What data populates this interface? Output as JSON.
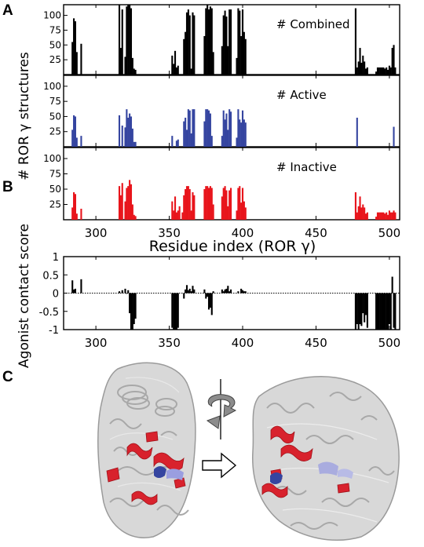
{
  "panel_labels": {
    "a": "A",
    "b": "B",
    "c": "C"
  },
  "chart_data": [
    {
      "panel": "A",
      "type": "bar",
      "ylabel": "# ROR γ structures",
      "xlabel": "Residue index (ROR γ)",
      "xlim": [
        278,
        507
      ],
      "xticks": [
        "300",
        "350",
        "400",
        "450",
        "500"
      ],
      "subplots": [
        {
          "annotation": "# Combined",
          "color": "#000000",
          "ylim": [
            0,
            118
          ],
          "yticks": [
            "25",
            "50",
            "75",
            "100"
          ],
          "x": [
            284,
            285,
            286,
            287,
            290,
            316,
            317,
            318,
            320,
            321,
            322,
            323,
            324,
            325,
            326,
            327,
            352,
            353,
            354,
            355,
            356,
            360,
            361,
            362,
            363,
            364,
            365,
            366,
            367,
            374,
            375,
            376,
            377,
            378,
            379,
            380,
            386,
            387,
            388,
            389,
            390,
            391,
            392,
            396,
            397,
            398,
            399,
            400,
            401,
            402,
            477,
            478,
            479,
            480,
            481,
            482,
            483,
            484,
            485,
            491,
            492,
            493,
            494,
            495,
            496,
            497,
            498,
            499,
            500,
            501,
            502,
            503,
            504
          ],
          "values": [
            55,
            95,
            90,
            38,
            52,
            118,
            45,
            110,
            30,
            115,
            118,
            120,
            112,
            28,
            10,
            8,
            32,
            18,
            40,
            12,
            15,
            60,
            72,
            105,
            110,
            100,
            10,
            105,
            100,
            65,
            112,
            118,
            110,
            115,
            112,
            38,
            48,
            100,
            108,
            98,
            48,
            110,
            110,
            28,
            112,
            108,
            65,
            110,
            72,
            60,
            112,
            12,
            22,
            45,
            20,
            32,
            22,
            10,
            12,
            5,
            12,
            12,
            12,
            12,
            12,
            10,
            12,
            8,
            15,
            12,
            45,
            50,
            12
          ]
        },
        {
          "annotation": "# Active",
          "color": "#3545a0",
          "ylim": [
            0,
            118
          ],
          "yticks": [
            "25",
            "50",
            "75",
            "100"
          ],
          "x": [
            284,
            285,
            286,
            287,
            290,
            316,
            318,
            320,
            321,
            322,
            323,
            324,
            325,
            326,
            327,
            352,
            355,
            356,
            360,
            361,
            362,
            363,
            364,
            365,
            366,
            367,
            374,
            375,
            376,
            377,
            378,
            379,
            386,
            387,
            388,
            389,
            390,
            391,
            392,
            396,
            397,
            398,
            399,
            400,
            401,
            402,
            478,
            503
          ],
          "values": [
            28,
            52,
            50,
            15,
            18,
            52,
            35,
            32,
            62,
            48,
            55,
            50,
            30,
            8,
            8,
            18,
            10,
            12,
            42,
            48,
            28,
            62,
            60,
            22,
            62,
            62,
            42,
            62,
            62,
            60,
            55,
            18,
            18,
            60,
            45,
            55,
            28,
            62,
            58,
            15,
            62,
            45,
            40,
            60,
            45,
            40,
            48,
            33
          ]
        },
        {
          "annotation": "# Inactive",
          "color": "#e8141b",
          "ylim": [
            0,
            118
          ],
          "yticks": [
            "25",
            "50",
            "75",
            "100"
          ],
          "x": [
            284,
            285,
            286,
            287,
            290,
            316,
            317,
            318,
            320,
            321,
            322,
            323,
            324,
            325,
            326,
            327,
            352,
            353,
            354,
            355,
            356,
            357,
            359,
            360,
            361,
            362,
            363,
            364,
            365,
            366,
            367,
            374,
            375,
            376,
            377,
            378,
            379,
            380,
            386,
            387,
            388,
            389,
            390,
            391,
            392,
            396,
            397,
            398,
            399,
            400,
            401,
            402,
            477,
            478,
            479,
            480,
            481,
            482,
            483,
            484,
            485,
            491,
            492,
            493,
            494,
            495,
            496,
            497,
            498,
            499,
            500,
            501,
            502,
            503,
            504
          ],
          "values": [
            20,
            45,
            42,
            10,
            18,
            55,
            40,
            60,
            30,
            52,
            55,
            65,
            58,
            25,
            8,
            6,
            30,
            15,
            38,
            12,
            15,
            22,
            12,
            40,
            50,
            55,
            55,
            50,
            15,
            45,
            40,
            50,
            55,
            55,
            52,
            55,
            52,
            25,
            38,
            52,
            55,
            48,
            22,
            48,
            52,
            15,
            52,
            55,
            28,
            52,
            30,
            20,
            45,
            12,
            22,
            38,
            20,
            25,
            20,
            10,
            12,
            5,
            12,
            12,
            12,
            12,
            12,
            10,
            12,
            8,
            15,
            12,
            12,
            15,
            12
          ]
        }
      ]
    },
    {
      "panel": "B",
      "type": "bar",
      "ylabel": "Agonist contact score",
      "xlim": [
        278,
        507
      ],
      "ylim": [
        -1,
        1
      ],
      "yticks": [
        "1",
        "0.5",
        "0",
        "-0.5",
        "-1"
      ],
      "xticks": [
        "300",
        "350",
        "400",
        "450",
        "500"
      ],
      "color": "#000000",
      "x": [
        284,
        285,
        286,
        290,
        316,
        318,
        320,
        321,
        322,
        323,
        324,
        325,
        326,
        327,
        352,
        353,
        354,
        355,
        356,
        360,
        361,
        362,
        363,
        364,
        365,
        366,
        367,
        374,
        375,
        376,
        377,
        378,
        379,
        380,
        386,
        387,
        388,
        389,
        390,
        391,
        392,
        397,
        399,
        400,
        401,
        402,
        477,
        478,
        479,
        480,
        481,
        482,
        483,
        484,
        485,
        491,
        492,
        493,
        494,
        495,
        496,
        497,
        498,
        499,
        500,
        501,
        502,
        503,
        504
      ],
      "values": [
        0.35,
        0.1,
        0.12,
        0.38,
        0.05,
        0.08,
        0.12,
        -0.02,
        0.08,
        -0.55,
        -1,
        -1,
        -0.85,
        -0.7,
        -0.95,
        -1,
        -1,
        -1,
        -0.95,
        -0.15,
        0.1,
        0.22,
        0.08,
        0.12,
        0.05,
        0.2,
        0.1,
        0.1,
        -0.15,
        -0.1,
        -0.45,
        -0.4,
        -0.6,
        0.05,
        0.1,
        0.05,
        0.1,
        0.12,
        0.2,
        0.05,
        0.1,
        0.05,
        0.12,
        0.08,
        0.05,
        0.05,
        -1,
        -0.85,
        -1,
        -0.85,
        -0.9,
        -0.55,
        -0.8,
        -0.6,
        -0.95,
        -1,
        -1,
        -1,
        -1,
        -1,
        -1,
        -1,
        -1,
        -1,
        -0.85,
        -1,
        0.45,
        -0.95,
        -1
      ]
    }
  ],
  "colors": {
    "combined": "#000000",
    "active": "#3545a0",
    "inactive": "#e8141b",
    "protein_body": "#d4d4d4",
    "protein_red": "#d8222d",
    "protein_blue": "#8a8fd8"
  },
  "panel_c": {
    "left_protein_icon": "protein-ribbon-left-icon",
    "right_protein_icon": "protein-ribbon-right-icon",
    "rotation_icon": "rotation-arrow-icon",
    "transition_icon": "hollow-right-arrow-icon"
  }
}
